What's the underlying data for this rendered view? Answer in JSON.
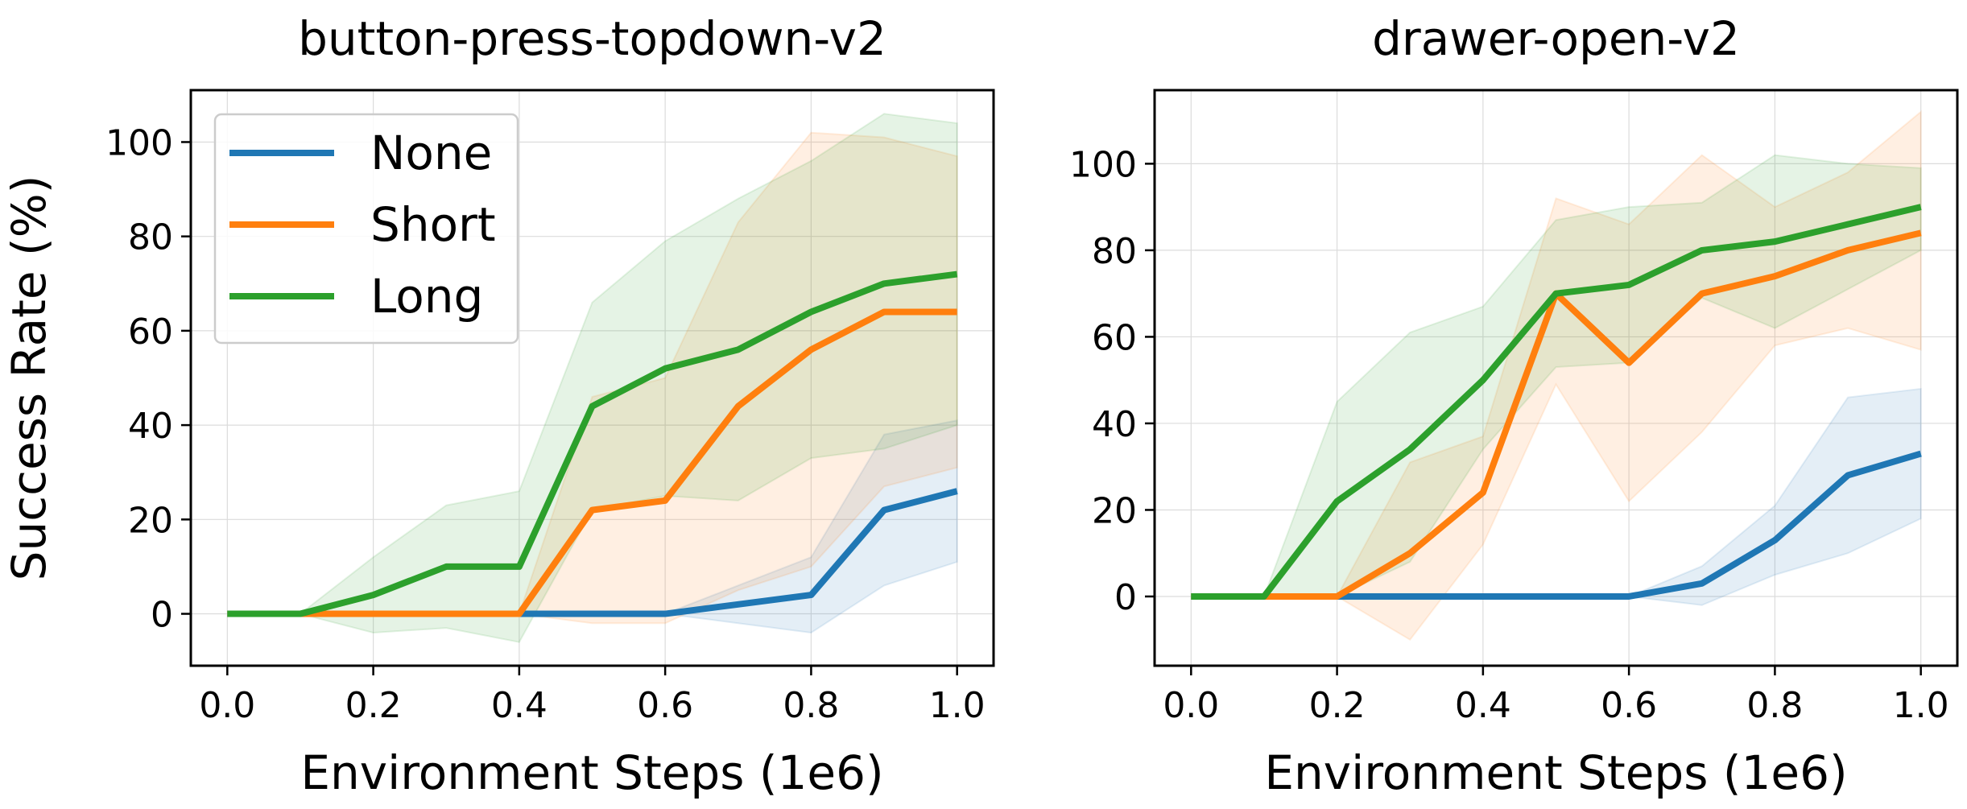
{
  "chart_data": [
    {
      "type": "line",
      "title": "button-press-topdown-v2",
      "xlabel": "Environment Steps (1e6)",
      "ylabel": "Success Rate (%)",
      "xlim": [
        -0.05,
        1.05
      ],
      "ylim": [
        -11,
        111
      ],
      "xticks": [
        0.0,
        0.2,
        0.4,
        0.6,
        0.8,
        1.0
      ],
      "xtick_labels": [
        "0.0",
        "0.2",
        "0.4",
        "0.6",
        "0.8",
        "1.0"
      ],
      "yticks": [
        0,
        20,
        40,
        60,
        80,
        100
      ],
      "ytick_labels": [
        "0",
        "20",
        "40",
        "60",
        "80",
        "100"
      ],
      "grid": true,
      "legend": {
        "position": "top-left",
        "show": true
      },
      "x": [
        0.0,
        0.1,
        0.2,
        0.3,
        0.4,
        0.5,
        0.6,
        0.7,
        0.8,
        0.9,
        1.0
      ],
      "series": [
        {
          "name": "None",
          "color": "#1f77b4",
          "values": [
            0,
            0,
            0,
            0,
            0,
            0,
            0,
            2,
            4,
            22,
            26
          ],
          "lower": [
            0,
            0,
            0,
            0,
            0,
            0,
            0,
            -2,
            -4,
            6,
            11
          ],
          "upper": [
            0,
            0,
            0,
            0,
            0,
            0,
            0,
            6,
            12,
            38,
            41
          ]
        },
        {
          "name": "Short",
          "color": "#ff7f0e",
          "values": [
            0,
            0,
            0,
            0,
            0,
            22,
            24,
            44,
            56,
            64,
            64
          ],
          "lower": [
            0,
            0,
            0,
            0,
            0,
            -2,
            -2,
            5,
            10,
            27,
            31
          ],
          "upper": [
            0,
            0,
            0,
            0,
            0,
            46,
            50,
            83,
            102,
            101,
            97
          ]
        },
        {
          "name": "Long",
          "color": "#2ca02c",
          "values": [
            0,
            0,
            4,
            10,
            10,
            44,
            52,
            56,
            64,
            70,
            72
          ],
          "lower": [
            0,
            0,
            -4,
            -3,
            -6,
            22,
            25,
            24,
            33,
            35,
            40
          ],
          "upper": [
            0,
            0,
            12,
            23,
            26,
            66,
            79,
            88,
            96,
            106,
            104
          ]
        }
      ]
    },
    {
      "type": "line",
      "title": "drawer-open-v2",
      "xlabel": "Environment Steps (1e6)",
      "ylabel": "",
      "xlim": [
        -0.05,
        1.05
      ],
      "ylim": [
        -16,
        117
      ],
      "xticks": [
        0.0,
        0.2,
        0.4,
        0.6,
        0.8,
        1.0
      ],
      "xtick_labels": [
        "0.0",
        "0.2",
        "0.4",
        "0.6",
        "0.8",
        "1.0"
      ],
      "yticks": [
        0,
        20,
        40,
        60,
        80,
        100
      ],
      "ytick_labels": [
        "0",
        "20",
        "40",
        "60",
        "80",
        "100"
      ],
      "grid": true,
      "legend": {
        "show": false
      },
      "x": [
        0.0,
        0.1,
        0.2,
        0.3,
        0.4,
        0.5,
        0.6,
        0.7,
        0.8,
        0.9,
        1.0
      ],
      "series": [
        {
          "name": "None",
          "color": "#1f77b4",
          "values": [
            0,
            0,
            0,
            0,
            0,
            0,
            0,
            3,
            13,
            28,
            33
          ],
          "lower": [
            0,
            0,
            0,
            0,
            0,
            0,
            0,
            -2,
            5,
            10,
            18
          ],
          "upper": [
            0,
            0,
            0,
            0,
            0,
            0,
            0,
            7,
            21,
            46,
            48
          ]
        },
        {
          "name": "Short",
          "color": "#ff7f0e",
          "values": [
            0,
            0,
            0,
            10,
            24,
            70,
            54,
            70,
            74,
            80,
            84
          ],
          "lower": [
            0,
            0,
            0,
            -10,
            12,
            49,
            22,
            38,
            58,
            62,
            57
          ],
          "upper": [
            0,
            0,
            0,
            31,
            37,
            92,
            86,
            102,
            90,
            98,
            112
          ]
        },
        {
          "name": "Long",
          "color": "#2ca02c",
          "values": [
            0,
            0,
            22,
            34,
            50,
            70,
            72,
            80,
            82,
            86,
            90
          ],
          "lower": [
            0,
            0,
            0,
            8,
            34,
            53,
            54,
            69,
            62,
            71,
            80
          ],
          "upper": [
            0,
            0,
            45,
            61,
            67,
            87,
            90,
            91,
            102,
            100,
            99
          ]
        }
      ]
    }
  ]
}
